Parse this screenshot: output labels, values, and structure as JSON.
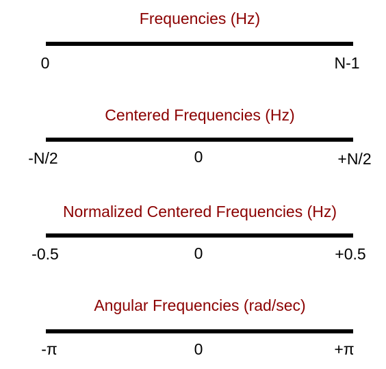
{
  "panels": [
    {
      "title": "Frequencies (Hz)",
      "ticks": {
        "left": "0",
        "middle": "",
        "right": "N-1"
      }
    },
    {
      "title": "Centered Frequencies (Hz)",
      "ticks": {
        "left": "-N/2",
        "middle": "0",
        "right": "+N/2"
      }
    },
    {
      "title": "Normalized Centered Frequencies (Hz)",
      "ticks": {
        "left": "-0.5",
        "middle": "0",
        "right": "+0.5"
      }
    },
    {
      "title": "Angular Frequencies (rad/sec)",
      "ticks": {
        "left": "-π",
        "middle": "0",
        "right": "+π"
      }
    }
  ],
  "colors": {
    "title": "#8b0000",
    "axis": "#000000",
    "label": "#000000"
  }
}
